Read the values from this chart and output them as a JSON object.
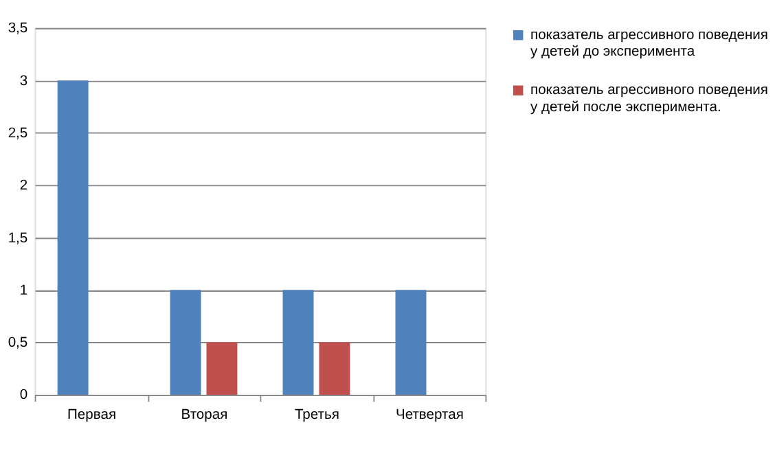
{
  "chart_data": {
    "type": "bar",
    "categories": [
      "Первая",
      "Вторая",
      "Третья",
      "Четвертая"
    ],
    "series": [
      {
        "name": "показатель агрессивного поведения у детей до эксперимента",
        "color": "#4f81bd",
        "values": [
          3,
          1,
          1,
          1
        ]
      },
      {
        "name": "показатель агрессивного поведения у детей после эксперимента.",
        "color": "#c0504d",
        "values": [
          0,
          0.5,
          0.5,
          0
        ]
      }
    ],
    "ylim": [
      0,
      3.5
    ],
    "yticks": [
      0,
      {
        "value": 0.5,
        "label": "0,5"
      },
      1,
      {
        "value": 1.5,
        "label": "1,5"
      },
      2,
      {
        "value": 2.5,
        "label": "2,5"
      },
      3,
      {
        "value": 3.5,
        "label": "3,5"
      }
    ],
    "grid": "y",
    "legend": "right"
  }
}
